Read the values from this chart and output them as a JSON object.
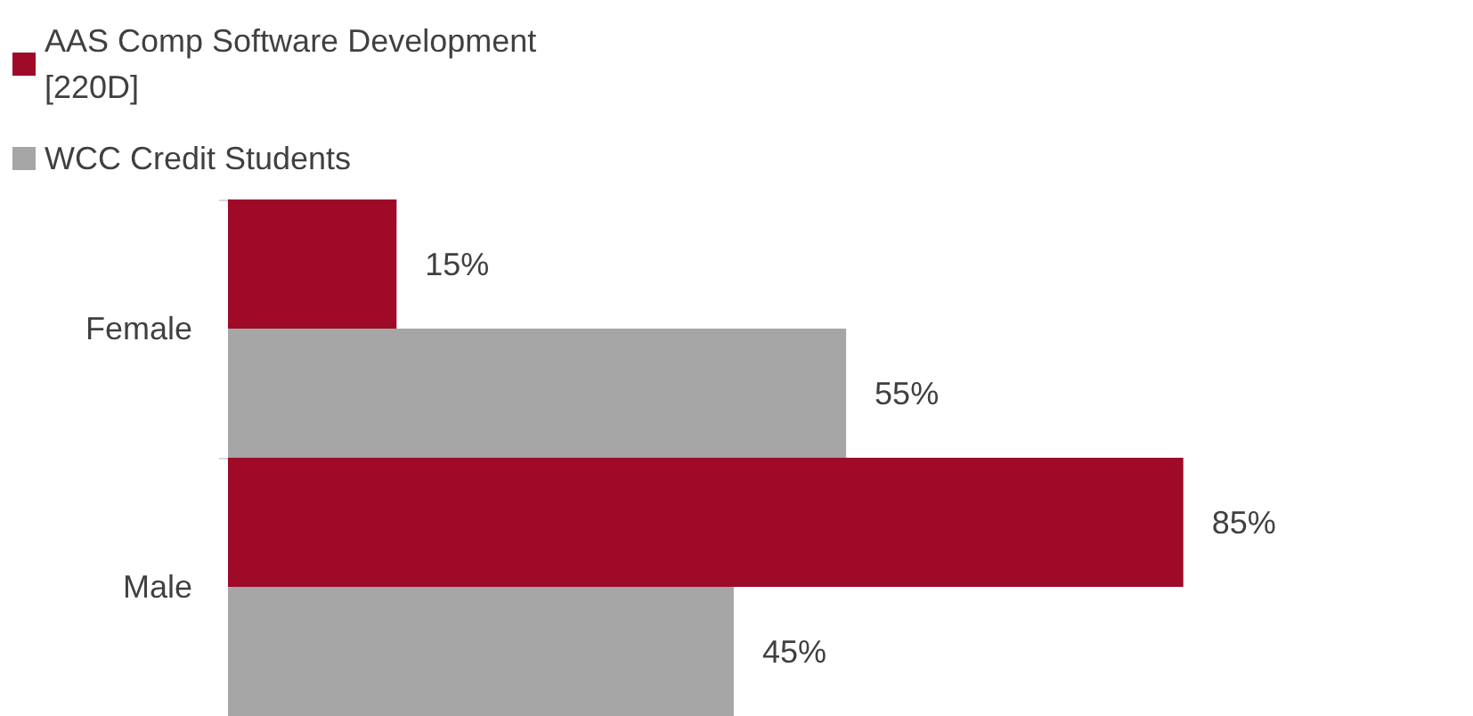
{
  "chart_data": {
    "type": "bar",
    "orientation": "horizontal",
    "categories": [
      "Female",
      "Male"
    ],
    "series": [
      {
        "name": "AAS Comp Software Development [220D]",
        "color": "#9e0a28",
        "values": [
          15,
          85
        ],
        "value_labels": [
          "15%",
          "85%"
        ]
      },
      {
        "name": "WCC Credit Students",
        "color": "#a6a6a6",
        "values": [
          55,
          45
        ],
        "value_labels": [
          "55%",
          "45%"
        ]
      }
    ],
    "legend": "top left"
  }
}
